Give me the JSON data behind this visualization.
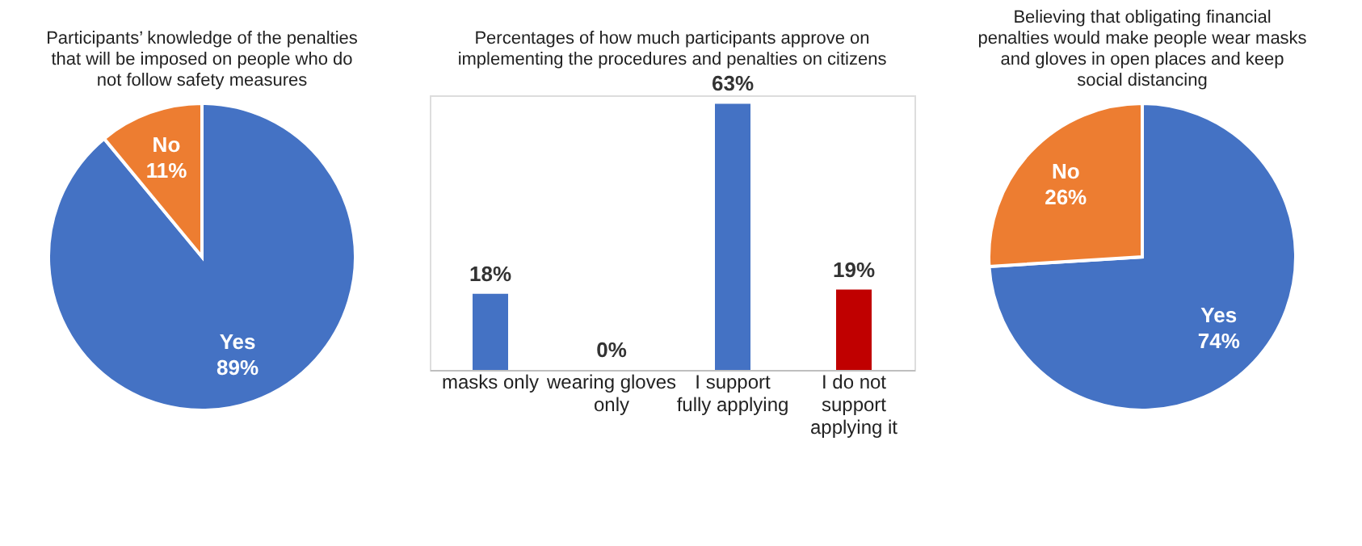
{
  "chart_data": [
    {
      "type": "pie",
      "title": "Participants’ knowledge of the penalties that will be imposed on people who do not follow safety measures",
      "categories": [
        "Yes",
        "No"
      ],
      "values": [
        89,
        11
      ],
      "colors": [
        "#4472c4",
        "#ed7d31"
      ],
      "value_labels": [
        "89%",
        "11%"
      ],
      "legend": false
    },
    {
      "type": "bar",
      "title": "Percentages of how much participants approve on implementing the procedures and penalties on citizens",
      "categories": [
        "masks only",
        "wearing gloves only",
        "I support fully applying",
        "I do not support applying it"
      ],
      "values": [
        18,
        0,
        63,
        19
      ],
      "colors": [
        "#4472c4",
        "#4472c4",
        "#4472c4",
        "#c00000"
      ],
      "value_labels": [
        "18%",
        "0%",
        "63%",
        "19%"
      ],
      "grid": false
    },
    {
      "type": "pie",
      "title": "Believing that obligating financial penalties would make people wear masks and gloves in open places and keep social distancing",
      "categories": [
        "Yes",
        "No"
      ],
      "values": [
        74,
        26
      ],
      "colors": [
        "#4472c4",
        "#ed7d31"
      ],
      "value_labels": [
        "74%",
        "26%"
      ],
      "legend": false
    }
  ]
}
